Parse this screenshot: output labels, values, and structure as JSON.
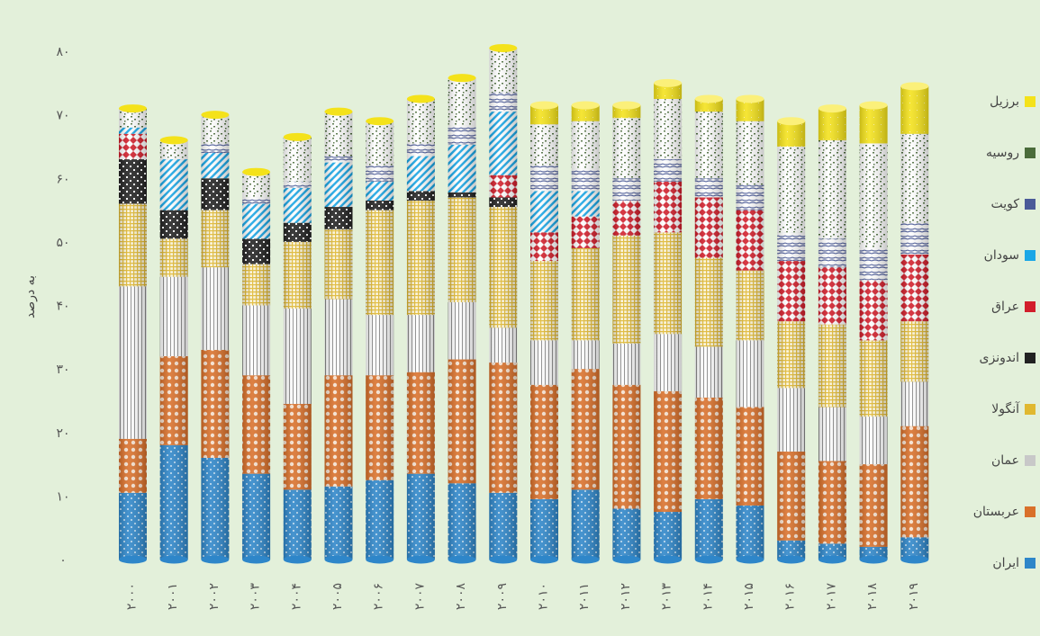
{
  "chart_data": {
    "type": "bar",
    "stacked": true,
    "title": "",
    "ylabel": "به درصد",
    "ylim": [
      0,
      80
    ],
    "y_ticks": [
      "۰",
      "۱۰",
      "۲۰",
      "۳۰",
      "۴۰",
      "۵۰",
      "۶۰",
      "۷۰",
      "۸۰"
    ],
    "categories": [
      "۲۰۰۰",
      "۲۰۰۱",
      "۲۰۰۲",
      "۲۰۰۳",
      "۲۰۰۴",
      "۲۰۰۵",
      "۲۰۰۶",
      "۲۰۰۷",
      "۲۰۰۸",
      "۲۰۰۹",
      "۲۰۱۰",
      "۲۰۱۱",
      "۲۰۱۲",
      "۲۰۱۳",
      "۲۰۱۴",
      "۲۰۱۵",
      "۲۰۱۶",
      "۲۰۱۷",
      "۲۰۱۸",
      "۲۰۱۹"
    ],
    "legend_position": "right",
    "series": [
      {
        "name": "ایران",
        "color": "#2e86c9",
        "pattern": "dots",
        "values": [
          10.5,
          18,
          16,
          13.5,
          11,
          11.5,
          12.5,
          13.5,
          12,
          10.5,
          9.5,
          11,
          8,
          7.5,
          9.5,
          8.5,
          3,
          2.5,
          2,
          3.5
        ]
      },
      {
        "name": "عربستان",
        "color": "#d9702a",
        "pattern": "chain",
        "values": [
          8.5,
          14,
          17,
          15.5,
          13.5,
          17.5,
          16.5,
          16,
          19.5,
          20.5,
          18,
          19,
          19.5,
          19,
          16,
          15.5,
          14,
          13,
          13,
          17.5
        ]
      },
      {
        "name": "عمان",
        "color": "#c8c8c8",
        "pattern": "vlines",
        "values": [
          24,
          12.5,
          13,
          11,
          15,
          12,
          9.5,
          9,
          9,
          5.5,
          7,
          4.5,
          6.5,
          9,
          8,
          10.5,
          10,
          8.5,
          7.5,
          7
        ]
      },
      {
        "name": "آنگولا",
        "color": "#e0b830",
        "pattern": "grid",
        "values": [
          13,
          6,
          9,
          6.5,
          10.5,
          11,
          16.5,
          18,
          16.5,
          19,
          12.5,
          14.5,
          17,
          16,
          14,
          11,
          10.5,
          13,
          12,
          9.5
        ]
      },
      {
        "name": "اندونزی",
        "color": "#222222",
        "pattern": "checker",
        "values": [
          7,
          4.5,
          5,
          4,
          3,
          3.5,
          1.5,
          1.5,
          0.8,
          1.5,
          0,
          0,
          0,
          0,
          0,
          0,
          0,
          0,
          0,
          0
        ]
      },
      {
        "name": "عراق",
        "color": "#d21e2b",
        "pattern": "diamond",
        "values": [
          4,
          0,
          0,
          0,
          0,
          0,
          0,
          0,
          0,
          3.5,
          4.5,
          5,
          5.5,
          8,
          9.5,
          9.5,
          9.5,
          9,
          9.5,
          10.5
        ]
      },
      {
        "name": "سودان",
        "color": "#1aa7e6",
        "pattern": "diagonal",
        "values": [
          1,
          8,
          4,
          5.5,
          5.5,
          7,
          3,
          5.5,
          7.5,
          10,
          6.5,
          4,
          0,
          0,
          0,
          0,
          0,
          0,
          0,
          0
        ]
      },
      {
        "name": "کویت",
        "color": "#4a5a98",
        "pattern": "weave",
        "values": [
          0,
          0,
          1.5,
          1,
          1,
          1,
          2.5,
          2,
          3,
          3,
          4,
          3.5,
          3.5,
          3.5,
          3,
          4,
          4.5,
          4.5,
          5,
          5
        ]
      },
      {
        "name": "روسیه",
        "color": "#4a6b3a",
        "pattern": "confetti",
        "values": [
          3,
          3,
          4.5,
          4,
          7,
          7,
          7,
          7,
          7.5,
          7,
          6.5,
          7.5,
          9.5,
          9.5,
          10.5,
          10,
          13.5,
          15.5,
          16.5,
          14
        ]
      },
      {
        "name": "برزیل",
        "color": "#f4e21a",
        "pattern": "solid",
        "values": [
          0,
          0,
          0,
          0,
          0,
          0,
          0,
          0,
          0,
          0,
          3,
          2.5,
          2,
          2.5,
          2,
          3.5,
          4,
          5,
          6,
          7.5
        ]
      }
    ]
  }
}
